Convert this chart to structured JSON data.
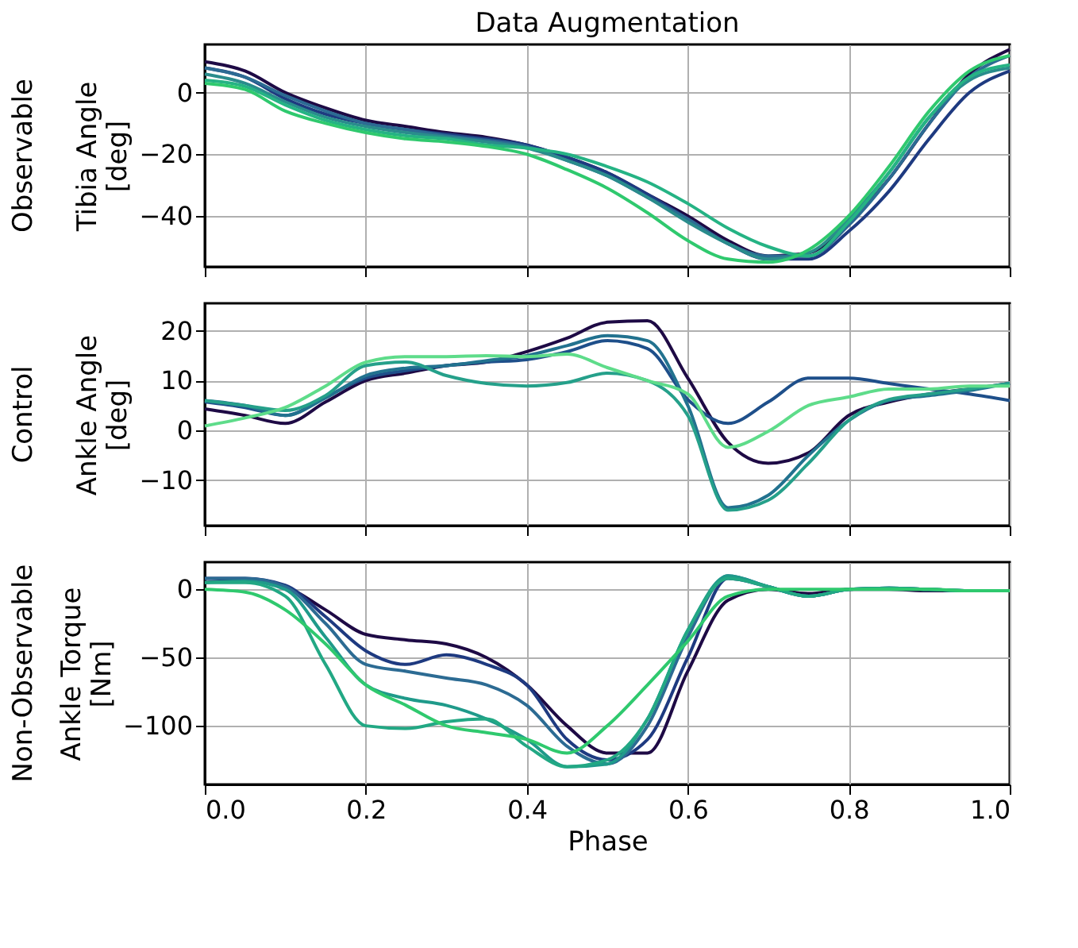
{
  "chart_data": [
    {
      "type": "line",
      "title": "Data Augmentation",
      "ylabel": "Tibia Angle\n[deg]",
      "annotations": [
        "Observable"
      ],
      "x": [
        0,
        0.05,
        0.1,
        0.15,
        0.2,
        0.25,
        0.3,
        0.35,
        0.4,
        0.45,
        0.5,
        0.55,
        0.6,
        0.65,
        0.7,
        0.75,
        0.8,
        0.85,
        0.9,
        0.95,
        1.0
      ],
      "xlim": [
        0,
        1
      ],
      "xticks": [
        0,
        0.2,
        0.4,
        0.6,
        0.8,
        1.0
      ],
      "ylim": [
        -56.5,
        15.6
      ],
      "yticks": [
        -40,
        -20,
        0
      ],
      "grid": true,
      "tick_labels": "y",
      "series": [
        {
          "color": "#1e0a45",
          "values": [
            10,
            7,
            0,
            -5,
            -9,
            -11,
            -13,
            -14.5,
            -17,
            -21,
            -26,
            -33,
            -40,
            -48,
            -53,
            -52,
            -42,
            -28,
            -10,
            6,
            14
          ]
        },
        {
          "color": "#1e3a80",
          "values": [
            8,
            5,
            -2,
            -7,
            -10,
            -12,
            -13.5,
            -15,
            -17,
            -21,
            -26,
            -33,
            -41,
            -49,
            -54,
            -54,
            -45,
            -32,
            -15,
            0,
            7
          ]
        },
        {
          "color": "#2c6b93",
          "values": [
            8,
            5,
            -1,
            -6,
            -10,
            -12,
            -14,
            -15.5,
            -17.5,
            -22,
            -27,
            -34,
            -41,
            -49,
            -53,
            -53,
            -43,
            -28,
            -10,
            5,
            12
          ]
        },
        {
          "color": "#2a8c8c",
          "values": [
            6,
            3,
            -3,
            -8,
            -11,
            -13,
            -14.5,
            -16,
            -18,
            -22,
            -27,
            -34,
            -42,
            -49,
            -54,
            -52,
            -41,
            -26,
            -8,
            4,
            8
          ]
        },
        {
          "color": "#25b384",
          "values": [
            4,
            2,
            -4,
            -9,
            -12,
            -14,
            -15,
            -17,
            -18,
            -20,
            -24,
            -29,
            -36,
            -44,
            -50,
            -53,
            -42,
            -26,
            -8,
            5,
            9
          ]
        },
        {
          "color": "#2fc96e",
          "values": [
            3,
            1,
            -6,
            -10,
            -13,
            -15,
            -16,
            -17.5,
            -20,
            -25,
            -31,
            -39,
            -48,
            -54,
            -55,
            -51,
            -40,
            -24,
            -6,
            7,
            12
          ]
        }
      ]
    },
    {
      "type": "line",
      "ylabel": "Ankle Angle\n[deg]",
      "annotations": [
        "Control"
      ],
      "x": [
        0,
        0.05,
        0.1,
        0.15,
        0.2,
        0.25,
        0.3,
        0.35,
        0.4,
        0.45,
        0.5,
        0.55,
        0.6,
        0.65,
        0.7,
        0.75,
        0.8,
        0.85,
        0.9,
        0.95,
        1.0
      ],
      "xlim": [
        0,
        1
      ],
      "xticks": [
        0,
        0.2,
        0.4,
        0.6,
        0.8,
        1.0
      ],
      "ylim": [
        -19.1,
        25.5
      ],
      "yticks": [
        -10,
        0,
        10,
        20
      ],
      "grid": true,
      "tick_labels": "y",
      "series": [
        {
          "color": "#1e0a45",
          "values": [
            4.3,
            3,
            1.4,
            5.7,
            10,
            11.5,
            13,
            13.7,
            15.8,
            18.5,
            21.7,
            22,
            10.5,
            -2.4,
            -6.6,
            -4.5,
            3,
            5.7,
            7.3,
            8.3,
            9.4
          ]
        },
        {
          "color": "#1e4f8a",
          "values": [
            5.7,
            4.6,
            3,
            6.7,
            10.5,
            12,
            13,
            13.7,
            14.2,
            15.8,
            18,
            16.4,
            6.2,
            1.4,
            5.7,
            10.5,
            10.5,
            9.4,
            8.3,
            7.3,
            6
          ]
        },
        {
          "color": "#22728f",
          "values": [
            6,
            5,
            3,
            6.5,
            11,
            12.5,
            13,
            14,
            15,
            17,
            19,
            18,
            5,
            -15.5,
            -13,
            -5,
            2,
            6,
            7,
            8,
            9.5
          ]
        },
        {
          "color": "#25a08a",
          "values": [
            6,
            5,
            4,
            7,
            13,
            13.7,
            11,
            9.4,
            8.9,
            9.6,
            11.5,
            10,
            3,
            -16,
            -14,
            -6.6,
            2,
            6.2,
            7.3,
            8.3,
            9.4
          ]
        },
        {
          "color": "#5edc8a",
          "values": [
            0.9,
            2.5,
            4.6,
            8.9,
            13.7,
            14.8,
            14.8,
            15,
            14.8,
            15.3,
            12.6,
            10,
            7.3,
            -3.4,
            -0.2,
            5,
            6.7,
            8.3,
            8.3,
            8.9,
            8.9
          ]
        }
      ]
    },
    {
      "type": "line",
      "ylabel": "Ankle Torque\n[Nm]",
      "xlabel": "Phase",
      "annotations": [
        "Non-Observable"
      ],
      "x": [
        0,
        0.05,
        0.1,
        0.15,
        0.2,
        0.25,
        0.3,
        0.35,
        0.4,
        0.45,
        0.5,
        0.55,
        0.6,
        0.65,
        0.7,
        0.75,
        0.8,
        0.85,
        0.9,
        0.95,
        1.0
      ],
      "xlim": [
        0,
        1
      ],
      "xticks": [
        {
          "value": 0,
          "label": "0.0"
        },
        0.2,
        0.4,
        0.6,
        0.8,
        {
          "value": 1,
          "label": "1.0"
        }
      ],
      "ylim": [
        -143,
        20
      ],
      "yticks": [
        -100,
        -50,
        0
      ],
      "grid": true,
      "series": [
        {
          "color": "#1e0a45",
          "values": [
            5,
            7,
            2,
            -15,
            -33,
            -37,
            -40,
            -50,
            -70,
            -100,
            -120,
            -120,
            -60,
            -8,
            0,
            -3,
            0,
            0,
            -1,
            -1,
            -1
          ]
        },
        {
          "color": "#1e3a80",
          "values": [
            8,
            8,
            3,
            -20,
            -45,
            -55,
            -48,
            -55,
            -70,
            -110,
            -125,
            -110,
            -50,
            8,
            2,
            -5,
            0,
            1,
            0,
            -1,
            -1
          ]
        },
        {
          "color": "#2c6b93",
          "values": [
            8,
            8,
            2,
            -25,
            -55,
            -60,
            -65,
            -70,
            -85,
            -115,
            -128,
            -100,
            -35,
            10,
            2,
            -5,
            0,
            1,
            0,
            -1,
            -1
          ]
        },
        {
          "color": "#1f9a8a",
          "values": [
            5,
            6,
            0,
            -35,
            -70,
            -80,
            -85,
            -95,
            -110,
            -130,
            -128,
            -95,
            -30,
            10,
            2,
            -5,
            0,
            1,
            0,
            -1,
            -1
          ]
        },
        {
          "color": "#22a884",
          "values": [
            5,
            5,
            -5,
            -55,
            -100,
            -102,
            -97,
            -95,
            -115,
            -130,
            -125,
            -95,
            -30,
            8,
            2,
            -5,
            0,
            1,
            0,
            -1,
            -1
          ]
        },
        {
          "color": "#2fc96e",
          "values": [
            0,
            -2,
            -15,
            -40,
            -70,
            -85,
            -100,
            -105,
            -110,
            -120,
            -100,
            -70,
            -38,
            -5,
            0,
            0,
            0,
            0,
            0,
            -1,
            -1
          ]
        }
      ]
    }
  ]
}
